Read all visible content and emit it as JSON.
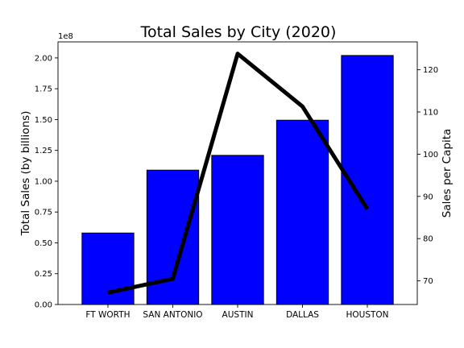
{
  "chart_data": {
    "type": "bar",
    "title": "Total Sales by City (2020)",
    "categories": [
      "FT WORTH",
      "SAN ANTONIO",
      "AUSTIN",
      "DALLAS",
      "HOUSTON"
    ],
    "series": [
      {
        "kind": "bar",
        "axis": "left",
        "color": "#0000ff",
        "values": [
          58000000,
          109000000,
          121000000,
          149500000,
          202000000
        ]
      },
      {
        "kind": "line",
        "axis": "right",
        "color": "#000000",
        "values": [
          67.2,
          70.5,
          123.8,
          111.3,
          87.0
        ]
      }
    ],
    "y_left": {
      "label": "Total Sales (by billions)",
      "offset_text": "1e8",
      "ylim": [
        0,
        213000000
      ],
      "ticks": [
        0,
        25000000,
        50000000,
        75000000,
        100000000,
        125000000,
        150000000,
        175000000,
        200000000
      ],
      "tick_labels": [
        "0.00",
        "0.25",
        "0.50",
        "0.75",
        "1.00",
        "1.25",
        "1.50",
        "1.75",
        "2.00"
      ]
    },
    "y_right": {
      "label": "Sales per Capita",
      "ylim": [
        64.4,
        126.6
      ],
      "ticks": [
        70,
        80,
        90,
        100,
        110,
        120
      ],
      "tick_labels": [
        "70",
        "80",
        "90",
        "100",
        "110",
        "120"
      ]
    },
    "legend": "none",
    "grid": false
  }
}
